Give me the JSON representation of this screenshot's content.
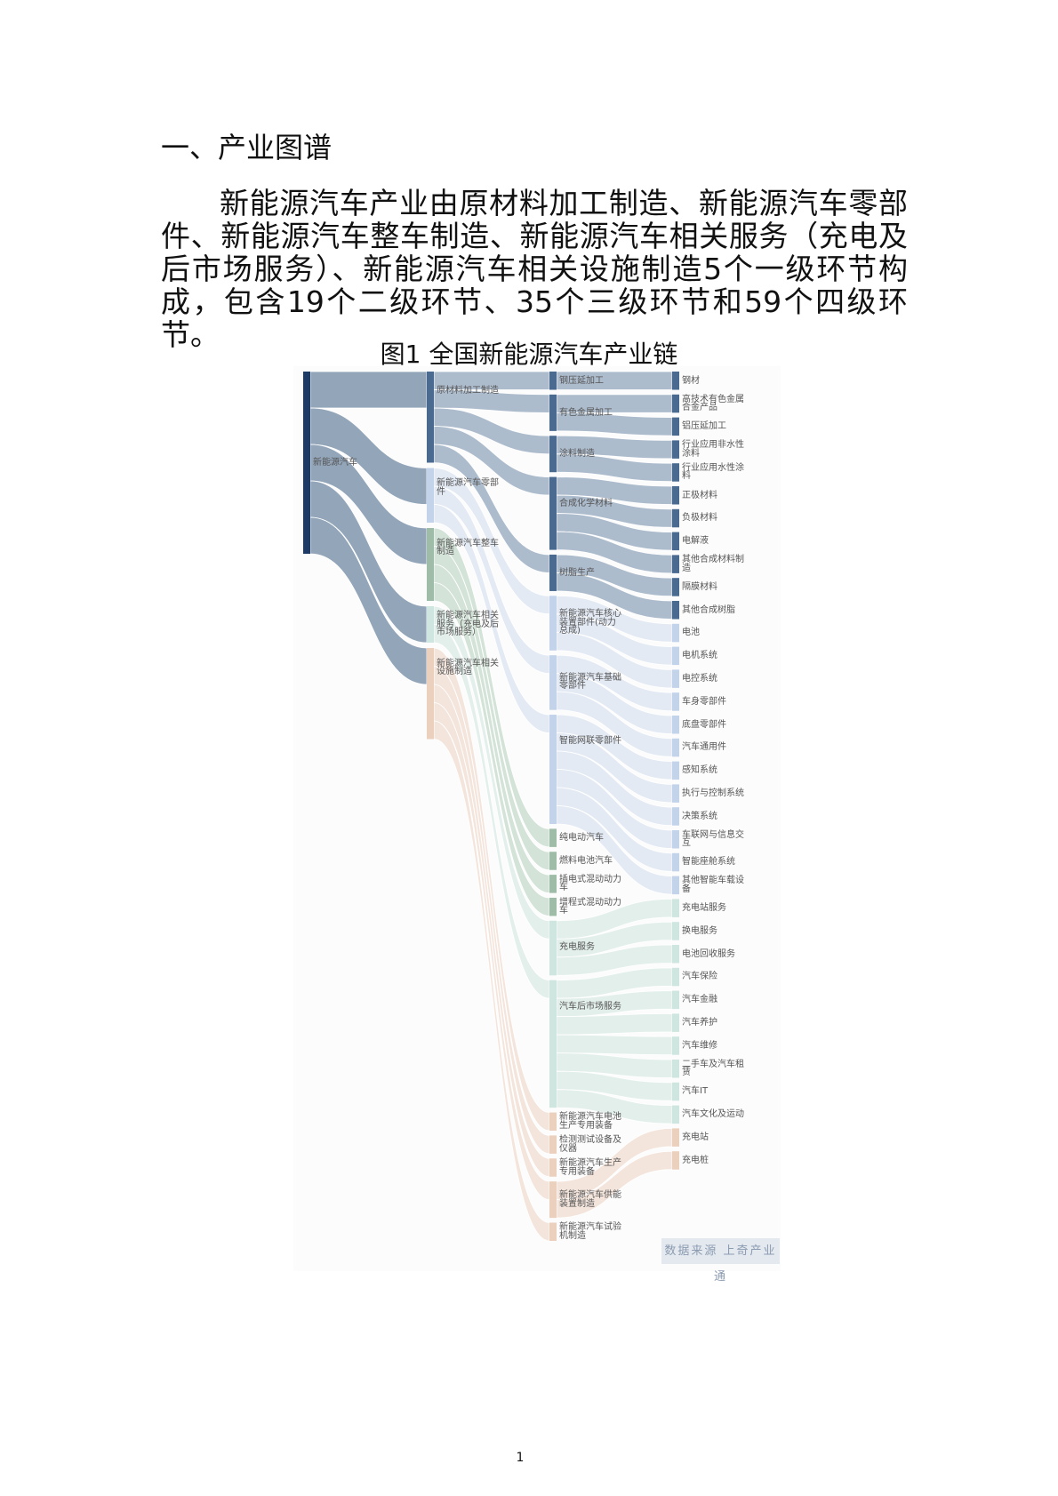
{
  "section_heading": "一、产业图谱",
  "paragraph": "新能源汽车产业由原材料加工制造、新能源汽车零部件、新能源汽车整车制造、新能源汽车相关服务（充电及后市场服务）、新能源汽车相关设施制造5个一级环节构成，包含19个二级环节、35个三级环节和59个四级环节。",
  "figure_caption": "图1 全国新能源汽车产业链",
  "data_source": "数据来源 上奇产业通",
  "page_number": "1",
  "colors": {
    "root_node": "#1e3a66",
    "root_link": "#8a9db3",
    "group_nodes": [
      "#4a6a90",
      "#c3d3ea",
      "#9fbca8",
      "#cfe5df",
      "#ecd0be"
    ],
    "group_links": [
      "#a6b6c9",
      "#e1e8f3",
      "#cfe1d5",
      "#e1eee9",
      "#f3e3d9"
    ]
  },
  "sankey": {
    "nodes": [
      {
        "name": "新能源汽车",
        "level": 0,
        "group": -1
      },
      {
        "name": "原材料加工制造",
        "level": 1,
        "group": 0
      },
      {
        "name": "新能源汽车零部件",
        "level": 1,
        "group": 1
      },
      {
        "name": "新能源汽车整车制造",
        "level": 1,
        "group": 2
      },
      {
        "name": "新能源汽车相关服务（充电及后市场服务）",
        "level": 1,
        "group": 3
      },
      {
        "name": "新能源汽车相关设施制造",
        "level": 1,
        "group": 4
      },
      {
        "name": "钢压延加工",
        "level": 2,
        "group": 0
      },
      {
        "name": "有色金属加工",
        "level": 2,
        "group": 0
      },
      {
        "name": "涂料制造",
        "level": 2,
        "group": 0
      },
      {
        "name": "合成化学材料",
        "level": 2,
        "group": 0
      },
      {
        "name": "树脂生产",
        "level": 2,
        "group": 0
      },
      {
        "name": "新能源汽车核心装置部件(动力总成)",
        "level": 2,
        "group": 1
      },
      {
        "name": "新能源汽车基础零部件",
        "level": 2,
        "group": 1
      },
      {
        "name": "智能网联零部件",
        "level": 2,
        "group": 1
      },
      {
        "name": "纯电动汽车",
        "level": 2,
        "group": 2
      },
      {
        "name": "燃料电池汽车",
        "level": 2,
        "group": 2
      },
      {
        "name": "插电式混动动力车",
        "level": 2,
        "group": 2
      },
      {
        "name": "增程式混动动力车",
        "level": 2,
        "group": 2
      },
      {
        "name": "充电服务",
        "level": 2,
        "group": 3
      },
      {
        "name": "汽车后市场服务",
        "level": 2,
        "group": 3
      },
      {
        "name": "新能源汽车电池生产专用装备",
        "level": 2,
        "group": 4
      },
      {
        "name": "检测测试设备及仪器",
        "level": 2,
        "group": 4
      },
      {
        "name": "新能源汽车生产专用装备",
        "level": 2,
        "group": 4
      },
      {
        "name": "新能源汽车供能装置制造",
        "level": 2,
        "group": 4
      },
      {
        "name": "新能源汽车试验机制造",
        "level": 2,
        "group": 4
      },
      {
        "name": "钢材",
        "level": 3,
        "group": 0
      },
      {
        "name": "高技术有色金属合金产品",
        "level": 3,
        "group": 0
      },
      {
        "name": "铝压延加工",
        "level": 3,
        "group": 0
      },
      {
        "name": "行业应用非水性涂料",
        "level": 3,
        "group": 0
      },
      {
        "name": "行业应用水性涂料",
        "level": 3,
        "group": 0
      },
      {
        "name": "正极材料",
        "level": 3,
        "group": 0
      },
      {
        "name": "负极材料",
        "level": 3,
        "group": 0
      },
      {
        "name": "电解液",
        "level": 3,
        "group": 0
      },
      {
        "name": "其他合成材料制造",
        "level": 3,
        "group": 0
      },
      {
        "name": "隔膜材料",
        "level": 3,
        "group": 0
      },
      {
        "name": "其他合成树脂",
        "level": 3,
        "group": 0
      },
      {
        "name": "电池",
        "level": 3,
        "group": 1
      },
      {
        "name": "电机系统",
        "level": 3,
        "group": 1
      },
      {
        "name": "电控系统",
        "level": 3,
        "group": 1
      },
      {
        "name": "车身零部件",
        "level": 3,
        "group": 1
      },
      {
        "name": "底盘零部件",
        "level": 3,
        "group": 1
      },
      {
        "name": "汽车通用件",
        "level": 3,
        "group": 1
      },
      {
        "name": "感知系统",
        "level": 3,
        "group": 1
      },
      {
        "name": "执行与控制系统",
        "level": 3,
        "group": 1
      },
      {
        "name": "决策系统",
        "level": 3,
        "group": 1
      },
      {
        "name": "车联网与信息交互",
        "level": 3,
        "group": 1
      },
      {
        "name": "智能座舱系统",
        "level": 3,
        "group": 1
      },
      {
        "name": "其他智能车载设备",
        "level": 3,
        "group": 1
      },
      {
        "name": "充电站服务",
        "level": 3,
        "group": 3
      },
      {
        "name": "换电服务",
        "level": 3,
        "group": 3
      },
      {
        "name": "电池回收服务",
        "level": 3,
        "group": 3
      },
      {
        "name": "汽车保险",
        "level": 3,
        "group": 3
      },
      {
        "name": "汽车金融",
        "level": 3,
        "group": 3
      },
      {
        "name": "汽车养护",
        "level": 3,
        "group": 3
      },
      {
        "name": "汽车维修",
        "level": 3,
        "group": 3
      },
      {
        "name": "二手车及汽车租赁",
        "level": 3,
        "group": 3
      },
      {
        "name": "汽车IT",
        "level": 3,
        "group": 3
      },
      {
        "name": "汽车文化及运动",
        "level": 3,
        "group": 3
      },
      {
        "name": "充电站",
        "level": 3,
        "group": 4
      },
      {
        "name": "充电桩",
        "level": 3,
        "group": 4
      }
    ],
    "links": [
      [
        0,
        1,
        2
      ],
      [
        0,
        2,
        2
      ],
      [
        0,
        3,
        2
      ],
      [
        0,
        4,
        2
      ],
      [
        0,
        5,
        2
      ],
      [
        1,
        6,
        1
      ],
      [
        1,
        7,
        1
      ],
      [
        1,
        8,
        1
      ],
      [
        1,
        9,
        1
      ],
      [
        1,
        10,
        1
      ],
      [
        2,
        11,
        1
      ],
      [
        2,
        12,
        1
      ],
      [
        2,
        13,
        1
      ],
      [
        3,
        14,
        1
      ],
      [
        3,
        15,
        1
      ],
      [
        3,
        16,
        1
      ],
      [
        3,
        17,
        1
      ],
      [
        4,
        18,
        1
      ],
      [
        4,
        19,
        1
      ],
      [
        5,
        20,
        1
      ],
      [
        5,
        21,
        1
      ],
      [
        5,
        22,
        1
      ],
      [
        5,
        23,
        1
      ],
      [
        5,
        24,
        1
      ],
      [
        6,
        25,
        1
      ],
      [
        7,
        26,
        1
      ],
      [
        7,
        27,
        1
      ],
      [
        8,
        28,
        1
      ],
      [
        8,
        29,
        1
      ],
      [
        9,
        30,
        1
      ],
      [
        9,
        31,
        1
      ],
      [
        9,
        32,
        1
      ],
      [
        9,
        33,
        1
      ],
      [
        10,
        34,
        1
      ],
      [
        10,
        35,
        1
      ],
      [
        11,
        36,
        1
      ],
      [
        11,
        37,
        1
      ],
      [
        11,
        38,
        1
      ],
      [
        12,
        39,
        1
      ],
      [
        12,
        40,
        1
      ],
      [
        12,
        41,
        1
      ],
      [
        13,
        42,
        1
      ],
      [
        13,
        43,
        1
      ],
      [
        13,
        44,
        1
      ],
      [
        13,
        45,
        1
      ],
      [
        13,
        46,
        1
      ],
      [
        13,
        47,
        1
      ],
      [
        18,
        48,
        1
      ],
      [
        18,
        49,
        1
      ],
      [
        18,
        50,
        1
      ],
      [
        19,
        51,
        1
      ],
      [
        19,
        52,
        1
      ],
      [
        19,
        53,
        1
      ],
      [
        19,
        54,
        1
      ],
      [
        19,
        55,
        1
      ],
      [
        19,
        56,
        1
      ],
      [
        19,
        57,
        1
      ],
      [
        23,
        58,
        1
      ],
      [
        23,
        59,
        1
      ]
    ]
  }
}
